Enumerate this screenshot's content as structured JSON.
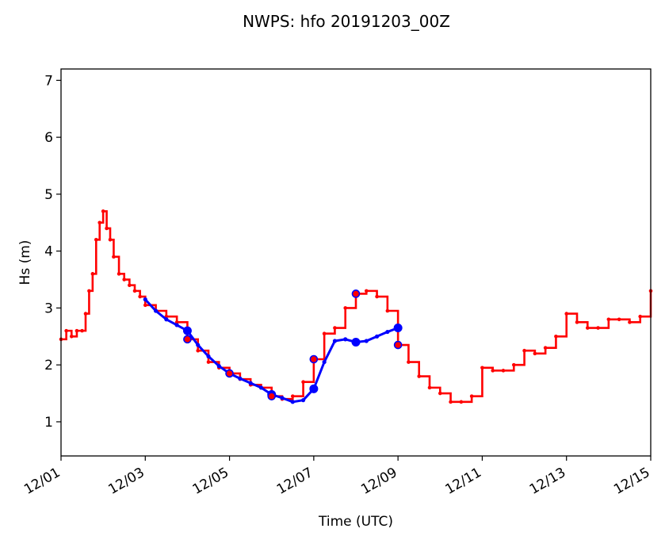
{
  "chart_data": {
    "type": "line",
    "title": "NWPS: hfo 20191203_00Z",
    "xlabel": "Time (UTC)",
    "ylabel": "Hs (m)",
    "xlim": [
      "2019-12-01T00:00",
      "2019-12-15T00:00"
    ],
    "ylim": [
      0.4,
      7.2
    ],
    "x_ticks": [
      "2019-12-01",
      "2019-12-03",
      "2019-12-05",
      "2019-12-07",
      "2019-12-09",
      "2019-12-11",
      "2019-12-13",
      "2019-12-15"
    ],
    "x_tick_labels": [
      "12/01",
      "12/03",
      "12/05",
      "12/07",
      "12/09",
      "12/11",
      "12/13",
      "12/15"
    ],
    "y_ticks": [
      1,
      2,
      3,
      4,
      5,
      6,
      7
    ],
    "y_tick_labels": [
      "1",
      "2",
      "3",
      "4",
      "5",
      "6",
      "7"
    ],
    "grid": false,
    "legend": "none",
    "series": [
      {
        "color": "#ff0000",
        "style": "stepped line with small dots",
        "points": [
          [
            "2019-12-01T00:00",
            2.45
          ],
          [
            "2019-12-01T03:00",
            2.6
          ],
          [
            "2019-12-01T06:00",
            2.5
          ],
          [
            "2019-12-01T09:00",
            2.6
          ],
          [
            "2019-12-01T12:00",
            2.6
          ],
          [
            "2019-12-01T14:00",
            2.9
          ],
          [
            "2019-12-01T16:00",
            3.3
          ],
          [
            "2019-12-01T18:00",
            3.6
          ],
          [
            "2019-12-01T20:00",
            4.2
          ],
          [
            "2019-12-01T22:00",
            4.5
          ],
          [
            "2019-12-02T00:00",
            4.7
          ],
          [
            "2019-12-02T02:00",
            4.4
          ],
          [
            "2019-12-02T04:00",
            4.2
          ],
          [
            "2019-12-02T06:00",
            3.9
          ],
          [
            "2019-12-02T09:00",
            3.6
          ],
          [
            "2019-12-02T12:00",
            3.5
          ],
          [
            "2019-12-02T15:00",
            3.4
          ],
          [
            "2019-12-02T18:00",
            3.3
          ],
          [
            "2019-12-02T21:00",
            3.2
          ],
          [
            "2019-12-03T00:00",
            3.05
          ],
          [
            "2019-12-03T06:00",
            2.95
          ],
          [
            "2019-12-03T12:00",
            2.85
          ],
          [
            "2019-12-03T18:00",
            2.75
          ],
          [
            "2019-12-04T00:00",
            2.45
          ],
          [
            "2019-12-04T06:00",
            2.25
          ],
          [
            "2019-12-04T12:00",
            2.05
          ],
          [
            "2019-12-04T18:00",
            1.95
          ],
          [
            "2019-12-05T00:00",
            1.85
          ],
          [
            "2019-12-05T06:00",
            1.75
          ],
          [
            "2019-12-05T12:00",
            1.65
          ],
          [
            "2019-12-05T18:00",
            1.6
          ],
          [
            "2019-12-06T00:00",
            1.45
          ],
          [
            "2019-12-06T06:00",
            1.4
          ],
          [
            "2019-12-06T12:00",
            1.45
          ],
          [
            "2019-12-06T18:00",
            1.7
          ],
          [
            "2019-12-07T00:00",
            2.1
          ],
          [
            "2019-12-07T06:00",
            2.55
          ],
          [
            "2019-12-07T12:00",
            2.65
          ],
          [
            "2019-12-07T18:00",
            3.0
          ],
          [
            "2019-12-08T00:00",
            3.25
          ],
          [
            "2019-12-08T06:00",
            3.3
          ],
          [
            "2019-12-08T12:00",
            3.2
          ],
          [
            "2019-12-08T18:00",
            2.95
          ],
          [
            "2019-12-09T00:00",
            2.35
          ],
          [
            "2019-12-09T06:00",
            2.05
          ],
          [
            "2019-12-09T12:00",
            1.8
          ],
          [
            "2019-12-09T18:00",
            1.6
          ],
          [
            "2019-12-10T00:00",
            1.5
          ],
          [
            "2019-12-10T06:00",
            1.35
          ],
          [
            "2019-12-10T12:00",
            1.35
          ],
          [
            "2019-12-10T18:00",
            1.45
          ],
          [
            "2019-12-11T00:00",
            1.95
          ],
          [
            "2019-12-11T06:00",
            1.9
          ],
          [
            "2019-12-11T12:00",
            1.9
          ],
          [
            "2019-12-11T18:00",
            2.0
          ],
          [
            "2019-12-12T00:00",
            2.25
          ],
          [
            "2019-12-12T06:00",
            2.2
          ],
          [
            "2019-12-12T12:00",
            2.3
          ],
          [
            "2019-12-12T18:00",
            2.5
          ],
          [
            "2019-12-13T00:00",
            2.9
          ],
          [
            "2019-12-13T06:00",
            2.75
          ],
          [
            "2019-12-13T12:00",
            2.65
          ],
          [
            "2019-12-13T18:00",
            2.65
          ],
          [
            "2019-12-14T00:00",
            2.8
          ],
          [
            "2019-12-14T06:00",
            2.8
          ],
          [
            "2019-12-14T12:00",
            2.75
          ],
          [
            "2019-12-14T18:00",
            2.85
          ],
          [
            "2019-12-15T00:00",
            3.3
          ]
        ]
      },
      {
        "color": "#0000ff",
        "style": "smooth line with dots",
        "points": [
          [
            "2019-12-03T00:00",
            3.15
          ],
          [
            "2019-12-03T06:00",
            2.95
          ],
          [
            "2019-12-03T12:00",
            2.8
          ],
          [
            "2019-12-03T18:00",
            2.7
          ],
          [
            "2019-12-04T00:00",
            2.6
          ],
          [
            "2019-12-04T06:00",
            2.35
          ],
          [
            "2019-12-04T12:00",
            2.15
          ],
          [
            "2019-12-04T18:00",
            1.98
          ],
          [
            "2019-12-05T00:00",
            1.85
          ],
          [
            "2019-12-05T06:00",
            1.76
          ],
          [
            "2019-12-05T12:00",
            1.68
          ],
          [
            "2019-12-05T18:00",
            1.6
          ],
          [
            "2019-12-06T00:00",
            1.48
          ],
          [
            "2019-12-06T06:00",
            1.42
          ],
          [
            "2019-12-06T12:00",
            1.35
          ],
          [
            "2019-12-06T18:00",
            1.38
          ],
          [
            "2019-12-07T00:00",
            1.58
          ],
          [
            "2019-12-07T06:00",
            2.05
          ],
          [
            "2019-12-07T12:00",
            2.42
          ],
          [
            "2019-12-07T18:00",
            2.45
          ],
          [
            "2019-12-08T00:00",
            2.4
          ],
          [
            "2019-12-08T06:00",
            2.42
          ],
          [
            "2019-12-08T12:00",
            2.5
          ],
          [
            "2019-12-08T18:00",
            2.58
          ],
          [
            "2019-12-09T00:00",
            2.65
          ]
        ]
      }
    ],
    "markers": [
      {
        "color": "#0000ff",
        "filled": true,
        "points": [
          [
            "2019-12-04T00:00",
            2.6
          ],
          [
            "2019-12-06T00:00",
            1.48
          ],
          [
            "2019-12-07T00:00",
            1.58
          ],
          [
            "2019-12-08T00:00",
            2.4
          ],
          [
            "2019-12-09T00:00",
            2.65
          ]
        ]
      },
      {
        "color": "#0000ff",
        "filled": false,
        "points": [
          [
            "2019-12-04T00:00",
            2.45
          ],
          [
            "2019-12-05T00:00",
            1.85
          ],
          [
            "2019-12-06T00:00",
            1.45
          ],
          [
            "2019-12-07T00:00",
            2.1
          ],
          [
            "2019-12-08T00:00",
            3.25
          ],
          [
            "2019-12-09T00:00",
            2.35
          ]
        ]
      }
    ]
  }
}
